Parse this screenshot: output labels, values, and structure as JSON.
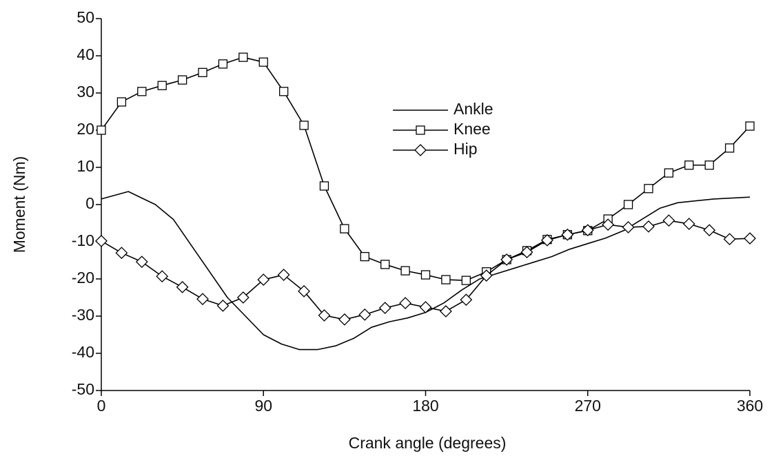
{
  "chart_data": {
    "type": "line",
    "xlabel": "Crank angle (degrees)",
    "ylabel": "Moment (Nm)",
    "xlim": [
      0,
      360
    ],
    "xticks": [
      0,
      90,
      180,
      270,
      360
    ],
    "ylim": [
      -50,
      50
    ],
    "yticks": [
      -50,
      -40,
      -30,
      -20,
      -10,
      0,
      10,
      20,
      30,
      40,
      50
    ],
    "legend": "upper-center-right",
    "series": [
      {
        "name": "Ankle",
        "color": "#000000",
        "marker": "none",
        "x": [
          0,
          15,
          30,
          40,
          50,
          60,
          70,
          80,
          90,
          100,
          110,
          120,
          130,
          140,
          150,
          160,
          170,
          180,
          190,
          200,
          210,
          220,
          230,
          240,
          250,
          260,
          270,
          280,
          290,
          300,
          310,
          320,
          340,
          360
        ],
        "values": [
          1.5,
          3.5,
          0,
          -4,
          -11,
          -18,
          -25,
          -30,
          -35,
          -37.5,
          -39,
          -39,
          -38,
          -36,
          -33,
          -31.5,
          -30.5,
          -29,
          -26.5,
          -23,
          -20,
          -18.5,
          -17,
          -15.5,
          -14,
          -12,
          -10.5,
          -9,
          -7,
          -4,
          -1,
          0.5,
          1.5,
          2
        ]
      },
      {
        "name": "Knee",
        "color": "#000000",
        "marker": "square",
        "x": [
          0,
          11.25,
          22.5,
          33.75,
          45,
          56.25,
          67.5,
          78.75,
          90,
          101.25,
          112.5,
          123.75,
          135,
          146.25,
          157.5,
          168.75,
          180,
          191.25,
          202.5,
          213.75,
          225,
          236.25,
          247.5,
          258.75,
          270,
          281.25,
          292.5,
          303.75,
          315,
          326.25,
          337.5,
          348.75,
          360
        ],
        "values": [
          20,
          27.6,
          30.4,
          32,
          33.5,
          35.5,
          37.8,
          39.6,
          38.3,
          30.4,
          21.3,
          5,
          -6.5,
          -14,
          -16.1,
          -17.8,
          -18.9,
          -20.2,
          -20.4,
          -18.1,
          -14.8,
          -12.4,
          -9.4,
          -8.1,
          -7,
          -3.9,
          0,
          4.3,
          8.5,
          10.6,
          10.6,
          15.2,
          21.1
        ]
      },
      {
        "name": "Hip",
        "color": "#000000",
        "marker": "diamond",
        "x": [
          0,
          11.25,
          22.5,
          33.75,
          45,
          56.25,
          67.5,
          78.75,
          90,
          101.25,
          112.5,
          123.75,
          135,
          146.25,
          157.5,
          168.75,
          180,
          191.25,
          202.5,
          213.75,
          225,
          236.25,
          247.5,
          258.75,
          270,
          281.25,
          292.5,
          303.75,
          315,
          326.25,
          337.5,
          348.75,
          360
        ],
        "values": [
          -9.8,
          -13,
          -15.4,
          -19.3,
          -22.2,
          -25.4,
          -27.2,
          -25,
          -20.2,
          -18.9,
          -23.3,
          -29.8,
          -30.9,
          -29.6,
          -27.8,
          -26.5,
          -27.6,
          -28.7,
          -25.6,
          -19.1,
          -14.8,
          -12.8,
          -9.6,
          -8.1,
          -6.9,
          -5.4,
          -6.1,
          -5.9,
          -4.3,
          -5.2,
          -6.9,
          -9.3,
          -9.1
        ]
      }
    ]
  }
}
